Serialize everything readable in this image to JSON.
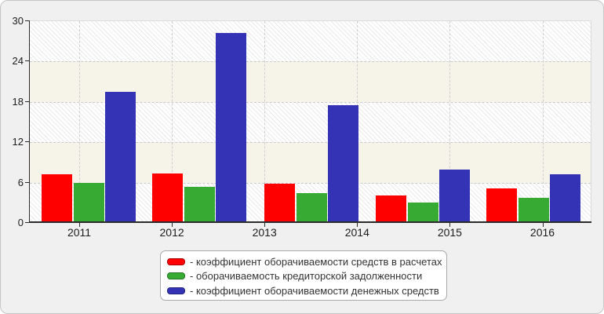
{
  "chart_data": {
    "type": "bar",
    "title": "",
    "xlabel": "",
    "ylabel": "",
    "categories": [
      "2011",
      "2012",
      "2013",
      "2014",
      "2015",
      "2016"
    ],
    "y_ticks": [
      0,
      6,
      12,
      18,
      24,
      30
    ],
    "ylim": [
      0,
      30
    ],
    "grid": true,
    "plot_background": "alternating horizontal bands: white diagonal hatch and cream",
    "band_colors": {
      "hatch_line": "#eaeaea",
      "cream": "#f6f3e8"
    },
    "series": [
      {
        "name": "коэффициент оборачиваемости средств в расчетах",
        "color": "#fe0000",
        "values": [
          7.2,
          7.4,
          5.8,
          4.1,
          5.1
        ]
      },
      {
        "name": "оборачиваемость кредиторской задолженности",
        "color": "#36aa33",
        "values": [
          6.0,
          5.4,
          4.4,
          3.0,
          3.7
        ]
      },
      {
        "name": "коэффициент оборачиваемости денежных средств",
        "color": "#3433b6",
        "values": [
          19.5,
          28.2,
          17.5,
          7.9,
          7.2
        ]
      }
    ],
    "clusters_drawn": 5,
    "legend_position": "bottom",
    "legend_labels": [
      "- коэффициент оборачиваемости средств в расчетах",
      "- оборачиваемость кредиторской задолженности",
      "- коэффициент оборачиваемости денежных средств"
    ]
  }
}
